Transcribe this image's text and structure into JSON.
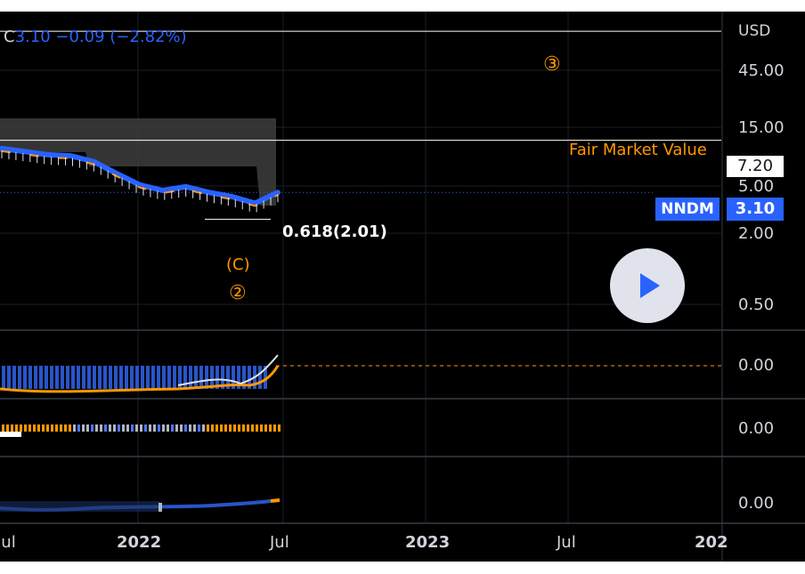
{
  "header": {
    "close_label": "C",
    "close_value": "3.10",
    "change": "−0.09",
    "change_pct": "(−2.82%)"
  },
  "price_axis": {
    "currency": "USD",
    "ticks": [
      "45.00",
      "15.00",
      "5.00",
      "2.00",
      "0.50"
    ]
  },
  "indicator_axes": {
    "pane1": "0.00",
    "pane2": "0.00",
    "pane3": "0.00"
  },
  "time_axis": {
    "ticks": [
      "Jul",
      "2022",
      "Jul",
      "2023",
      "Jul",
      "202"
    ]
  },
  "annotations": {
    "fair_market_label": "Fair Market Value",
    "fair_market_value": "7.20",
    "symbol": "NNDM",
    "last_price": "3.10",
    "fib_level": "0.618(2.01)",
    "wave_c": "(C)",
    "wave_2": "②",
    "wave_3": "③"
  },
  "colors": {
    "background": "#000000",
    "blue": "#2962ff",
    "orange": "#ff9800",
    "text": "#d1d4dc",
    "white": "#ffffff"
  },
  "controls": {
    "play": "play-icon"
  },
  "chart_data": {
    "type": "line",
    "y_scale": "log",
    "price_series": {
      "name": "NNDM",
      "x": [
        "2021-07",
        "2021-08",
        "2021-09",
        "2021-10",
        "2021-11",
        "2021-12",
        "2022-01",
        "2022-02",
        "2022-03",
        "2022-04",
        "2022-05",
        "2022-06",
        "2022-07"
      ],
      "values": [
        6.3,
        6.0,
        5.7,
        5.6,
        5.1,
        4.2,
        3.5,
        3.2,
        3.4,
        3.1,
        2.9,
        2.6,
        3.1
      ]
    },
    "horizontal_levels": [
      {
        "label": "Fair Market Value",
        "value": 7.2
      },
      {
        "label": "",
        "value": 42
      },
      {
        "label": "0.618(2.01)",
        "value": 2.01
      }
    ],
    "last_price": 3.1
  }
}
